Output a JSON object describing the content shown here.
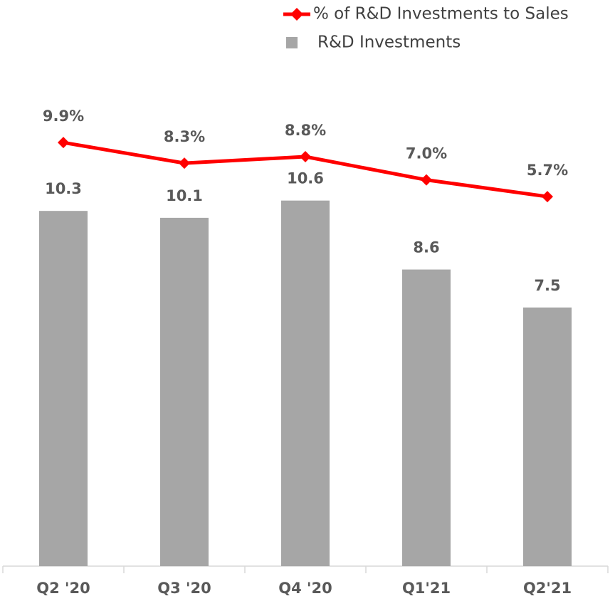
{
  "chart_data": {
    "type": "bar",
    "categories": [
      "Q2 '20",
      "Q3 '20",
      "Q4 '20",
      "Q1'21",
      "Q2'21"
    ],
    "series": [
      {
        "name": "R&D Investments",
        "type": "bar",
        "color": "#a6a6a6",
        "values": [
          10.3,
          10.1,
          10.6,
          8.6,
          7.5
        ]
      },
      {
        "name": "% of R&D Investments to Sales",
        "type": "line",
        "axis": "y2",
        "color": "#ff0000",
        "values": [
          9.9,
          8.3,
          8.8,
          7.0,
          5.7
        ],
        "value_labels": [
          "9.9%",
          "8.3%",
          "8.8%",
          "7.0%",
          "5.7%"
        ]
      }
    ],
    "ylim": [
      0,
      14
    ],
    "y2lim": [
      -23,
      14.5
    ],
    "grid": false
  }
}
